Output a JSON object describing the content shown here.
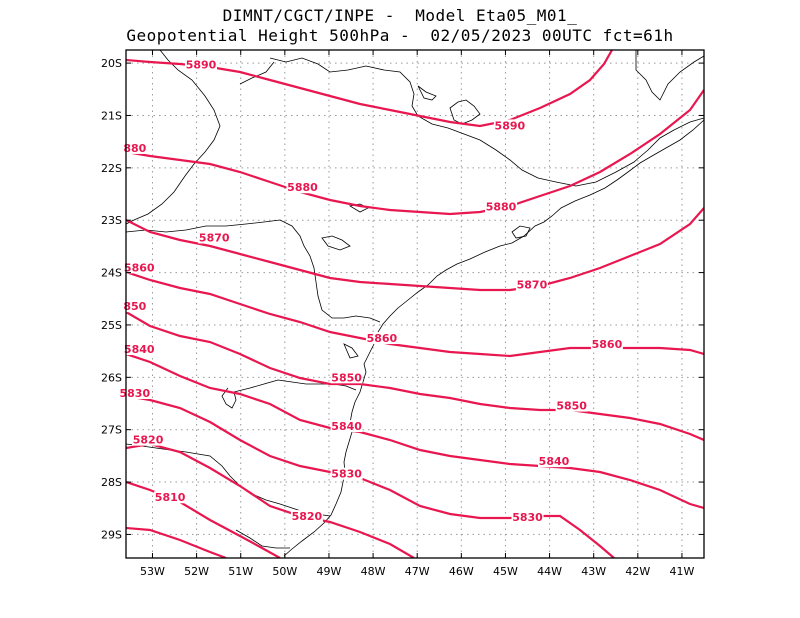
{
  "title": {
    "line1": "DIMNT/CGCT/INPE -  Model Eta05_M01_",
    "line2": "Geopotential Height 500hPa -  02/05/2023 00UTC fct=61h"
  },
  "colors": {
    "contour": "#e8174f",
    "label": "#e8174f",
    "coast": "#000000",
    "grid": "#999999"
  },
  "map": {
    "lon_range": [
      -53.6,
      -40.5
    ],
    "lat_range": [
      -29.45,
      -19.75
    ],
    "lon_ticks": [
      "53W",
      "52W",
      "51W",
      "50W",
      "49W",
      "48W",
      "47W",
      "46W",
      "45W",
      "44W",
      "43W",
      "42W",
      "41W"
    ],
    "lat_ticks": [
      "20S",
      "21S",
      "22S",
      "23S",
      "24S",
      "25S",
      "26S",
      "27S",
      "28S",
      "29S"
    ]
  },
  "contours": [
    {
      "value": 5890,
      "label": "5890"
    },
    {
      "value": 5880,
      "label": "5880"
    },
    {
      "value": 5870,
      "label": "5870"
    },
    {
      "value": 5860,
      "label": "5860"
    },
    {
      "value": 5850,
      "label": "5850"
    },
    {
      "value": 5840,
      "label": "5840"
    },
    {
      "value": 5830,
      "label": "5830"
    },
    {
      "value": 5820,
      "label": "5820"
    },
    {
      "value": 5810,
      "label": "5810"
    }
  ],
  "contour_labels": [
    {
      "text": "5890",
      "lon": -51.9,
      "lat": -20.03
    },
    {
      "text": "5890",
      "lon": -44.9,
      "lat": -21.19
    },
    {
      "text": "880",
      "lon": -53.4,
      "lat": -21.62
    },
    {
      "text": "5880",
      "lon": -49.6,
      "lat": -22.37
    },
    {
      "text": "5880",
      "lon": -45.1,
      "lat": -22.74
    },
    {
      "text": "5870",
      "lon": -51.6,
      "lat": -23.33
    },
    {
      "text": "5870",
      "lon": -44.4,
      "lat": -24.23
    },
    {
      "text": "5860",
      "lon": -53.3,
      "lat": -23.9
    },
    {
      "text": "5860",
      "lon": -47.8,
      "lat": -25.25
    },
    {
      "text": "5860",
      "lon": -42.7,
      "lat": -25.36
    },
    {
      "text": "850",
      "lon": -53.4,
      "lat": -24.64
    },
    {
      "text": "5850",
      "lon": -48.6,
      "lat": -26.0
    },
    {
      "text": "5850",
      "lon": -43.5,
      "lat": -26.54
    },
    {
      "text": "5840",
      "lon": -53.3,
      "lat": -25.46
    },
    {
      "text": "5840",
      "lon": -48.6,
      "lat": -26.93
    },
    {
      "text": "5840",
      "lon": -43.9,
      "lat": -27.6
    },
    {
      "text": "5830",
      "lon": -53.4,
      "lat": -26.3
    },
    {
      "text": "5830",
      "lon": -48.6,
      "lat": -27.84
    },
    {
      "text": "5830",
      "lon": -44.5,
      "lat": -28.67
    },
    {
      "text": "5820",
      "lon": -53.1,
      "lat": -27.19
    },
    {
      "text": "5820",
      "lon": -49.5,
      "lat": -28.65
    },
    {
      "text": "5810",
      "lon": -52.6,
      "lat": -28.29
    }
  ]
}
